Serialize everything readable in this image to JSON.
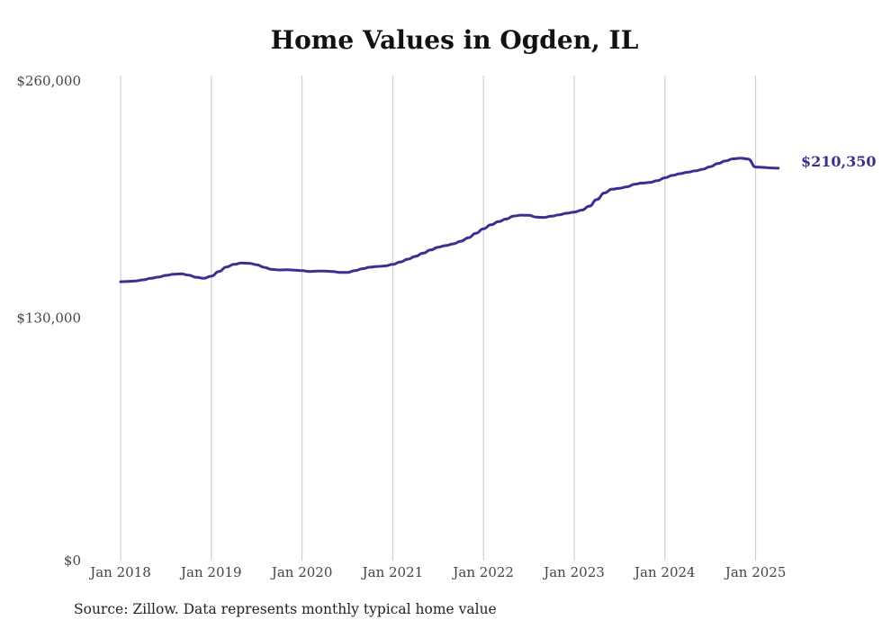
{
  "title": "Home Values in Ogden, IL",
  "source": "Source: Zillow. Data represents monthly typical home value",
  "chart_data": {
    "type": "line",
    "title": "Home Values in Ogden, IL",
    "xlabel": "",
    "ylabel": "",
    "ylim": [
      0,
      260000
    ],
    "xlim": [
      "2018-01",
      "2025-12"
    ],
    "grid": {
      "vertical": true,
      "horizontal": false
    },
    "y_ticks": [
      {
        "value": 0,
        "label": "$0"
      },
      {
        "value": 130000,
        "label": "$130,000"
      },
      {
        "value": 260000,
        "label": "$260,000"
      }
    ],
    "x_ticks": [
      {
        "date": "2018-01",
        "label": "Jan 2018"
      },
      {
        "date": "2019-01",
        "label": "Jan 2019"
      },
      {
        "date": "2020-01",
        "label": "Jan 2020"
      },
      {
        "date": "2021-01",
        "label": "Jan 2021"
      },
      {
        "date": "2022-01",
        "label": "Jan 2022"
      },
      {
        "date": "2023-01",
        "label": "Jan 2023"
      },
      {
        "date": "2024-01",
        "label": "Jan 2024"
      },
      {
        "date": "2025-01",
        "label": "Jan 2025"
      }
    ],
    "end_label": "$210,350",
    "line_color": "#3d2f8f",
    "series": [
      {
        "x": [
          "2018-01",
          "2018-02",
          "2018-03",
          "2018-04",
          "2018-05",
          "2018-06",
          "2018-07",
          "2018-08",
          "2018-09",
          "2018-10",
          "2018-11",
          "2018-12",
          "2019-01",
          "2019-02",
          "2019-03",
          "2019-04",
          "2019-05",
          "2019-06",
          "2019-07",
          "2019-08",
          "2019-09",
          "2019-10",
          "2019-11",
          "2019-12",
          "2020-01",
          "2020-02",
          "2020-03",
          "2020-04",
          "2020-05",
          "2020-06",
          "2020-07",
          "2020-08",
          "2020-09",
          "2020-10",
          "2020-11",
          "2020-12",
          "2021-01",
          "2021-02",
          "2021-03",
          "2021-04",
          "2021-05",
          "2021-06",
          "2021-07",
          "2021-08",
          "2021-09",
          "2021-10",
          "2021-11",
          "2021-12",
          "2022-01",
          "2022-02",
          "2022-03",
          "2022-04",
          "2022-05",
          "2022-06",
          "2022-07",
          "2022-08",
          "2022-09",
          "2022-10",
          "2022-11",
          "2022-12",
          "2023-01",
          "2023-02",
          "2023-03",
          "2023-04",
          "2023-05",
          "2023-06",
          "2023-07",
          "2023-08",
          "2023-09",
          "2023-10",
          "2023-11",
          "2023-12",
          "2024-01",
          "2024-02",
          "2024-03",
          "2024-04",
          "2024-05",
          "2024-06",
          "2024-07",
          "2024-08",
          "2024-09",
          "2024-10",
          "2024-11",
          "2024-12",
          "2025-01",
          "2025-02",
          "2025-03",
          "2025-04"
        ],
        "values": [
          149500,
          149700,
          149900,
          150500,
          151300,
          152000,
          152900,
          153500,
          153800,
          153000,
          151900,
          151300,
          152500,
          155000,
          157400,
          158800,
          159500,
          159400,
          158600,
          157200,
          156100,
          155800,
          155900,
          155700,
          155400,
          155000,
          155200,
          155200,
          155000,
          154500,
          154500,
          155400,
          156500,
          157300,
          157700,
          158000,
          158800,
          160100,
          161600,
          163100,
          164800,
          166500,
          168000,
          168900,
          169800,
          171200,
          173100,
          175500,
          177900,
          180000,
          181700,
          183100,
          184700,
          185200,
          185100,
          184100,
          184000,
          184600,
          185400,
          186200,
          186800,
          187900,
          190000,
          193600,
          197100,
          199100,
          199600,
          200400,
          201800,
          202400,
          202700,
          203700,
          205200,
          206500,
          207400,
          208200,
          208900,
          209800,
          211200,
          212800,
          214200,
          215400,
          215700,
          215300,
          211000,
          210800,
          210500,
          210350
        ]
      }
    ]
  }
}
